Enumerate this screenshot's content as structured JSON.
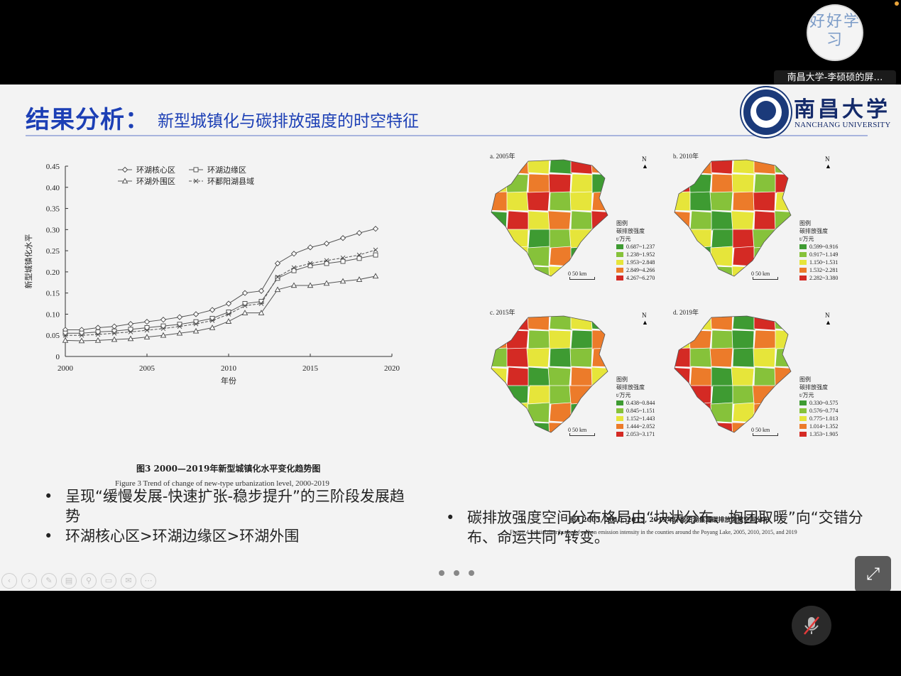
{
  "overlay": {
    "avatar_text": "好好学习",
    "speaker_label": "南昌大学-李硕硕的屏…"
  },
  "slide": {
    "title_main": "结果分析：",
    "title_sub": "新型城镇化与碳排放强度的时空特征",
    "logo_cn": "南昌大学",
    "logo_en": "NANCHANG UNIVERSITY"
  },
  "chart_data": {
    "type": "line",
    "title": "",
    "xlabel": "年份",
    "ylabel": "新型城镇化水平",
    "xlim": [
      2000,
      2020
    ],
    "ylim": [
      0,
      0.45
    ],
    "x_ticks": [
      "2000",
      "2005",
      "2010",
      "2015",
      "2020"
    ],
    "y_ticks": [
      "0",
      "0.05",
      "0.10",
      "0.15",
      "0.20",
      "0.25",
      "0.30",
      "0.35",
      "0.40",
      "0.45"
    ],
    "legend_position": "top-center",
    "grid": false,
    "x": [
      2000,
      2001,
      2002,
      2003,
      2004,
      2005,
      2006,
      2007,
      2008,
      2009,
      2010,
      2011,
      2012,
      2013,
      2014,
      2015,
      2016,
      2017,
      2018,
      2019
    ],
    "series": [
      {
        "name": "环湖核心区",
        "marker": "diamond",
        "values": [
          0.063,
          0.063,
          0.068,
          0.071,
          0.077,
          0.082,
          0.087,
          0.093,
          0.1,
          0.11,
          0.125,
          0.15,
          0.155,
          0.22,
          0.243,
          0.258,
          0.267,
          0.28,
          0.292,
          0.302
        ]
      },
      {
        "name": "环湖边缘区",
        "marker": "square",
        "values": [
          0.055,
          0.055,
          0.058,
          0.06,
          0.064,
          0.068,
          0.072,
          0.076,
          0.082,
          0.09,
          0.105,
          0.125,
          0.13,
          0.185,
          0.203,
          0.215,
          0.22,
          0.225,
          0.232,
          0.24
        ]
      },
      {
        "name": "环湖外围区",
        "marker": "triangle",
        "values": [
          0.038,
          0.037,
          0.038,
          0.04,
          0.042,
          0.046,
          0.05,
          0.055,
          0.06,
          0.068,
          0.083,
          0.103,
          0.103,
          0.158,
          0.168,
          0.168,
          0.173,
          0.178,
          0.182,
          0.19
        ]
      },
      {
        "name": "环鄱阳湖县域",
        "marker": "cross",
        "values": [
          0.05,
          0.05,
          0.052,
          0.055,
          0.058,
          0.062,
          0.066,
          0.071,
          0.077,
          0.085,
          0.1,
          0.12,
          0.125,
          0.188,
          0.21,
          0.22,
          0.227,
          0.233,
          0.24,
          0.252
        ]
      }
    ]
  },
  "chart_caption": {
    "cn": "图3  2000—2019年新型城镇化水平变化趋势图",
    "en": "Figure 3   Trend of change of new-type urbanization level, 2000-2019"
  },
  "maps": {
    "panels": [
      {
        "tag": "a. 2005年",
        "legend_title": "图例",
        "legend_sub": "碳排放强度",
        "legend_unit": "t/万元",
        "classes": [
          "0.687~1.237",
          "1.238~1.952",
          "1.953~2.848",
          "2.849~4.266",
          "4.267~6.270"
        ]
      },
      {
        "tag": "b. 2010年",
        "legend_title": "图例",
        "legend_sub": "碳排放强度",
        "legend_unit": "t/万元",
        "classes": [
          "0.599~0.916",
          "0.917~1.149",
          "1.150~1.531",
          "1.532~2.281",
          "2.282~3.380"
        ]
      },
      {
        "tag": "c. 2015年",
        "legend_title": "图例",
        "legend_sub": "碳排放强度",
        "legend_unit": "t/万元",
        "classes": [
          "0.438~0.844",
          "0.845~1.151",
          "1.152~1.443",
          "1.444~2.052",
          "2.053~3.171"
        ]
      },
      {
        "tag": "d. 2019年",
        "legend_title": "图例",
        "legend_sub": "碳排放强度",
        "legend_unit": "t/万元",
        "classes": [
          "0.330~0.575",
          "0.576~0.774",
          "0.775~1.013",
          "1.014~1.352",
          "1.353~1.905"
        ]
      }
    ],
    "class_colors": [
      "#3e9b32",
      "#86c23a",
      "#e6e53a",
      "#ec7b2a",
      "#d42a24"
    ],
    "north": "N",
    "scale_0": "0",
    "scale_label": "50 km",
    "caption_cn": "图4  2005, 2010, 2015, 2019年环鄱阳湖县域碳排放强度空间分布",
    "caption_en": "Figure 4   Spatial distribution of carbon emission intensity in the counties around the Poyang Lake, 2005, 2010, 2015, and 2019"
  },
  "bullets_left": [
    "呈现“缓慢发展-快速扩张-稳步提升”的三阶段发展趋势",
    "环湖核心区>环湖边缘区>环湖外围"
  ],
  "bullets_right": [
    "碳排放强度空间分布格局由“块状分布、抱团取暖”向“交错分布、命运共同”转变。"
  ],
  "bullet_char": "•",
  "expand_icon": "⤢",
  "toolbar_icons": [
    "‹",
    "›",
    "✎",
    "▤",
    "⚲",
    "▭",
    "✉",
    "⋯"
  ]
}
